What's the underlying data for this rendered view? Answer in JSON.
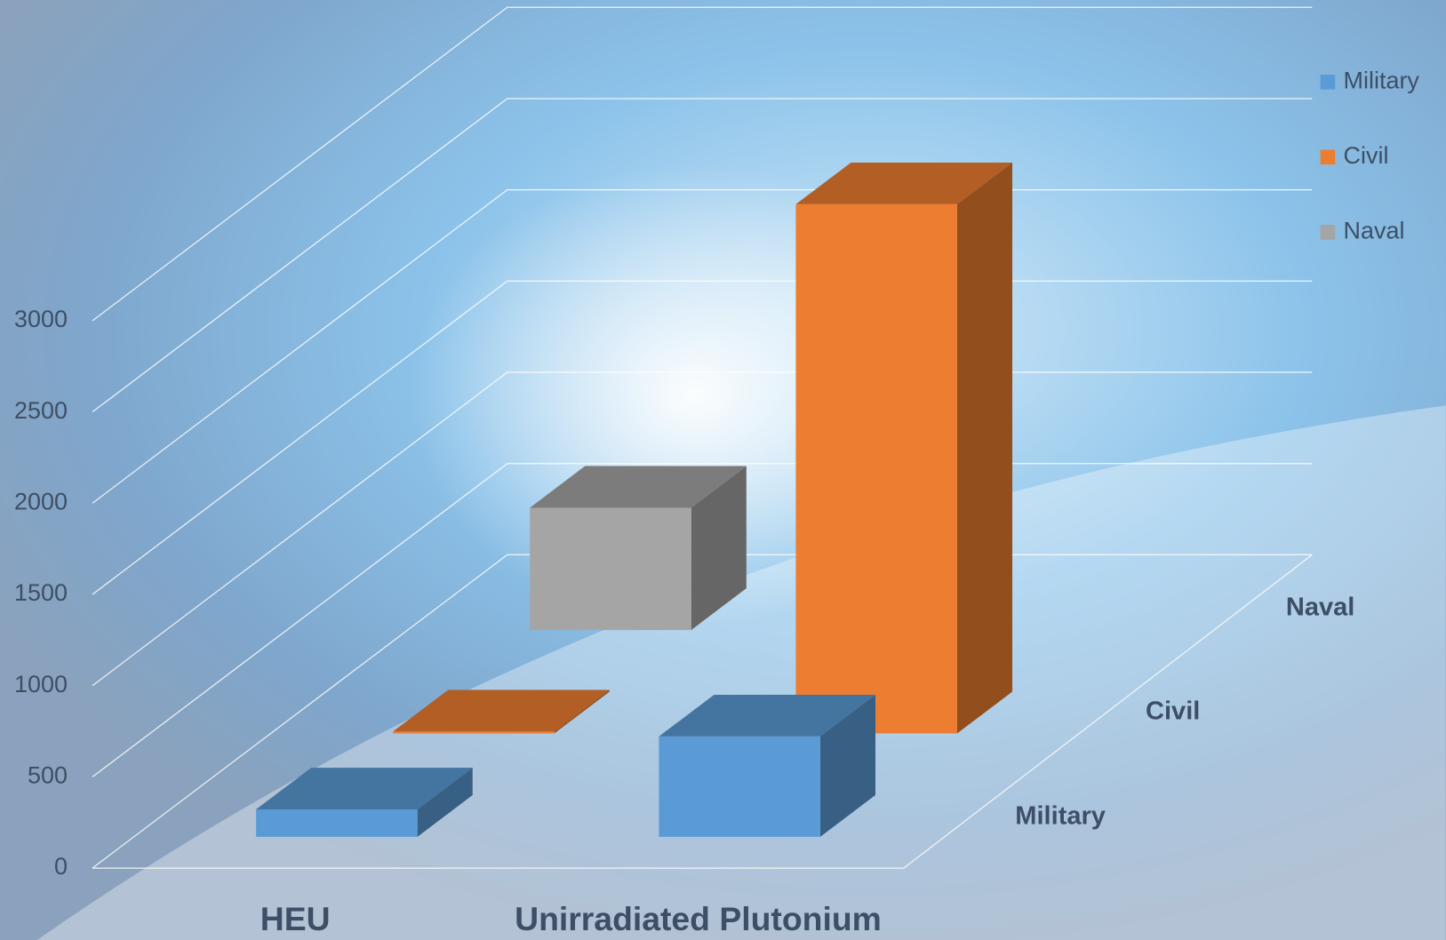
{
  "chart_data": {
    "type": "bar3d",
    "categories": [
      "HEU",
      "Unirradiated Plutonium"
    ],
    "series": [
      {
        "name": "Military",
        "color": "#5b9bd5",
        "values": [
          150,
          550
        ]
      },
      {
        "name": "Civil",
        "color": "#ed7d31",
        "values": [
          10,
          2900
        ]
      },
      {
        "name": "Naval",
        "color": "#a5a5a5",
        "values": [
          670,
          0
        ]
      }
    ],
    "ylim": [
      0,
      3000
    ],
    "yticks": [
      0,
      500,
      1000,
      1500,
      2000,
      2500,
      3000
    ],
    "grid": true
  }
}
